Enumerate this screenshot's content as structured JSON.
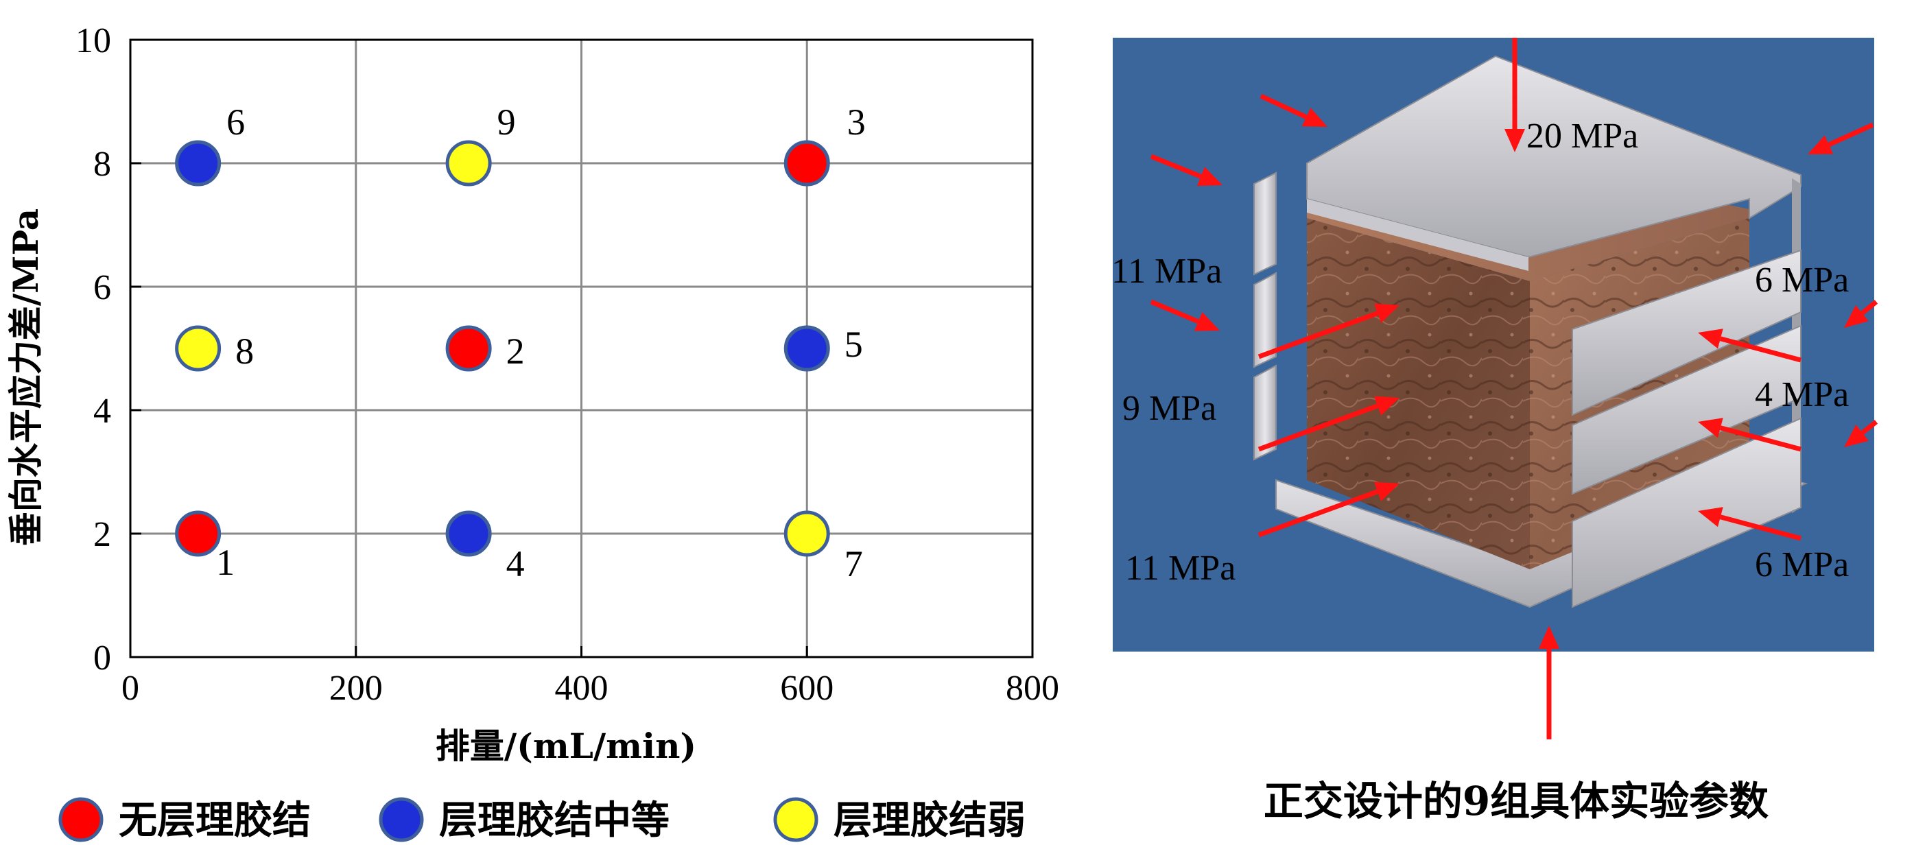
{
  "chart_data": {
    "type": "scatter",
    "title": "",
    "xlabel": "排量/(mL/min)",
    "ylabel": "垂向水平应力差/MPa",
    "xlim": [
      0,
      800
    ],
    "ylim": [
      0,
      10
    ],
    "x_ticks": [
      "0",
      "200",
      "400",
      "600",
      "800"
    ],
    "y_ticks": [
      "0",
      "2",
      "4",
      "6",
      "8",
      "10"
    ],
    "grid": true,
    "legend_position": "bottom",
    "series": [
      {
        "name": "无层理胶结",
        "color": "#ff0000",
        "points": [
          {
            "x": 60,
            "y": 2,
            "label": "1"
          },
          {
            "x": 300,
            "y": 5,
            "label": "2"
          },
          {
            "x": 600,
            "y": 8,
            "label": "3"
          }
        ]
      },
      {
        "name": "层理胶结中等",
        "color": "#1f2fd8",
        "points": [
          {
            "x": 300,
            "y": 2,
            "label": "4"
          },
          {
            "x": 600,
            "y": 5,
            "label": "5"
          },
          {
            "x": 60,
            "y": 8,
            "label": "6"
          }
        ]
      },
      {
        "name": "层理胶结弱",
        "color": "#ffff1a",
        "points": [
          {
            "x": 600,
            "y": 2,
            "label": "7"
          },
          {
            "x": 60,
            "y": 5,
            "label": "8"
          },
          {
            "x": 300,
            "y": 8,
            "label": "9"
          }
        ]
      }
    ]
  },
  "diagram": {
    "background_color": "#3a669b",
    "rock_color": "#7a4a36",
    "arrow_color": "#ff1111",
    "stress_labels": {
      "top": "20 MPa",
      "left_upper": "11 MPa",
      "left_middle": "9 MPa",
      "left_lower": "11 MPa",
      "right_upper": "6 MPa",
      "right_middle": "4 MPa",
      "right_lower": "6 MPa"
    },
    "caption": "正交设计的9组具体实验参数"
  }
}
